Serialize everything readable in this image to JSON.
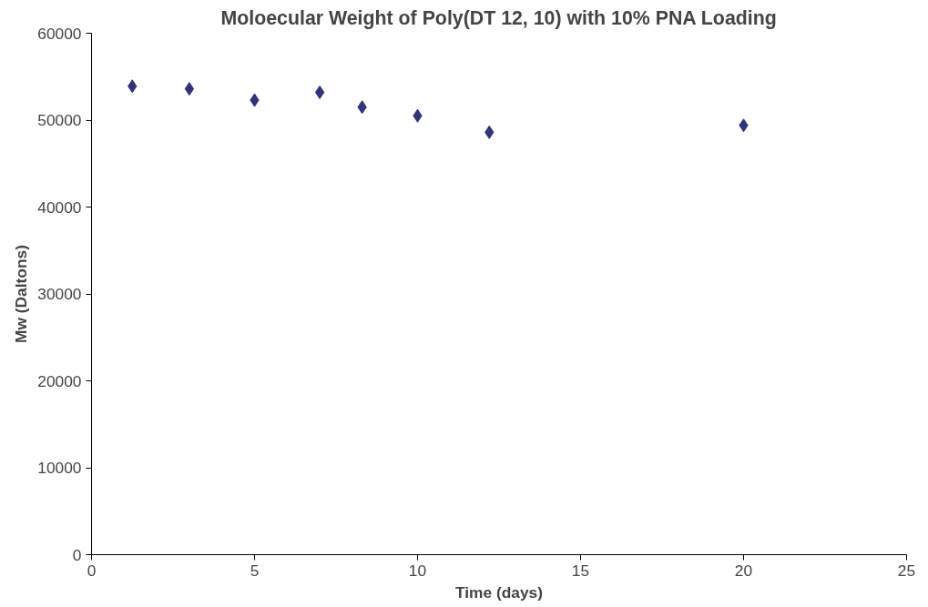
{
  "chart_data": {
    "type": "scatter",
    "title": "Moloecular Weight of Poly(DT 12, 10) with 10% PNA Loading",
    "xlabel": "Time (days)",
    "ylabel": "Mw (Daltons)",
    "x": [
      1.25,
      3,
      5,
      7,
      8.3,
      10,
      12.2,
      20
    ],
    "series": [
      {
        "color": "#33337a",
        "values": [
          53900,
          53600,
          52300,
          53200,
          51500,
          50500,
          48600,
          49400
        ]
      }
    ],
    "xlim": [
      0,
      25
    ],
    "xticks": [
      0,
      5,
      10,
      15,
      20,
      25
    ],
    "ylim": [
      0,
      60000
    ],
    "yticks": [
      0,
      10000,
      20000,
      30000,
      40000,
      50000,
      60000
    ],
    "marker": "diamond"
  }
}
